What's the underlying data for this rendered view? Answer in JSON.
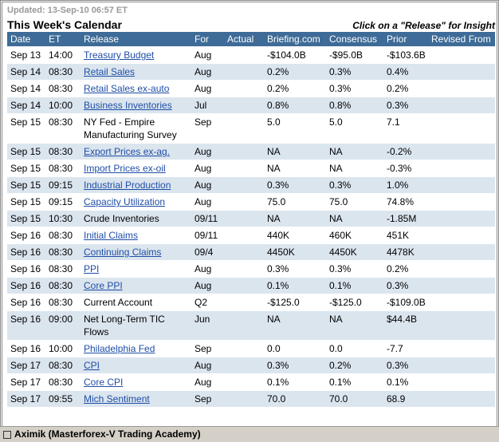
{
  "updated": "Updated: 13-Sep-10 06:57 ET",
  "title": "This Week's Calendar",
  "hint": "Click on a \"Release\" for Insight",
  "headers": [
    "Date",
    "ET",
    "Release",
    "For",
    "Actual",
    "Briefing.com",
    "Consensus",
    "Prior",
    "Revised From"
  ],
  "rows": [
    {
      "date": "Sep 13",
      "time": "14:00",
      "release": "Treasury Budget",
      "link": true,
      "for": "Aug",
      "briefing": "-$104.0B",
      "consensus": "-$95.0B",
      "prior": "-$103.6B"
    },
    {
      "date": "Sep 14",
      "time": "08:30",
      "release": "Retail Sales",
      "link": true,
      "for": "Aug",
      "briefing": "0.2%",
      "consensus": "0.3%",
      "prior": "0.4%"
    },
    {
      "date": "Sep 14",
      "time": "08:30",
      "release": "Retail Sales ex-auto",
      "link": true,
      "for": "Aug",
      "briefing": "0.2%",
      "consensus": "0.3%",
      "prior": "0.2%"
    },
    {
      "date": "Sep 14",
      "time": "10:00",
      "release": "Business Inventories",
      "link": true,
      "for": "Jul",
      "briefing": "0.8%",
      "consensus": "0.8%",
      "prior": "0.3%"
    },
    {
      "date": "Sep 15",
      "time": "08:30",
      "release": "NY Fed - Empire Manufacturing Survey",
      "link": false,
      "for": "Sep",
      "briefing": "5.0",
      "consensus": "5.0",
      "prior": "7.1"
    },
    {
      "date": "Sep 15",
      "time": "08:30",
      "release": "Export Prices ex-ag.",
      "link": true,
      "for": "Aug",
      "briefing": "NA",
      "consensus": "NA",
      "prior": "-0.2%"
    },
    {
      "date": "Sep 15",
      "time": "08:30",
      "release": "Import Prices ex-oil",
      "link": true,
      "for": "Aug",
      "briefing": "NA",
      "consensus": "NA",
      "prior": "-0.3%"
    },
    {
      "date": "Sep 15",
      "time": "09:15",
      "release": "Industrial Production",
      "link": true,
      "for": "Aug",
      "briefing": "0.3%",
      "consensus": "0.3%",
      "prior": "1.0%"
    },
    {
      "date": "Sep 15",
      "time": "09:15",
      "release": "Capacity Utilization",
      "link": true,
      "for": "Aug",
      "briefing": "75.0",
      "consensus": "75.0",
      "prior": "74.8%"
    },
    {
      "date": "Sep 15",
      "time": "10:30",
      "release": "Crude Inventories",
      "link": false,
      "for": "09/11",
      "briefing": "NA",
      "consensus": "NA",
      "prior": "-1.85M"
    },
    {
      "date": "Sep 16",
      "time": "08:30",
      "release": "Initial Claims",
      "link": true,
      "for": "09/11",
      "briefing": "440K",
      "consensus": "460K",
      "prior": "451K"
    },
    {
      "date": "Sep 16",
      "time": "08:30",
      "release": "Continuing Claims",
      "link": true,
      "for": "09/4",
      "briefing": "4450K",
      "consensus": "4450K",
      "prior": "4478K"
    },
    {
      "date": "Sep 16",
      "time": "08:30",
      "release": "PPI",
      "link": true,
      "for": "Aug",
      "briefing": "0.3%",
      "consensus": "0.3%",
      "prior": "0.2%"
    },
    {
      "date": "Sep 16",
      "time": "08:30",
      "release": "Core PPI",
      "link": true,
      "for": "Aug",
      "briefing": "0.1%",
      "consensus": "0.1%",
      "prior": "0.3%"
    },
    {
      "date": "Sep 16",
      "time": "08:30",
      "release": "Current Account",
      "link": false,
      "for": "Q2",
      "briefing": "-$125.0",
      "consensus": "-$125.0",
      "prior": "-$109.0B"
    },
    {
      "date": "Sep 16",
      "time": "09:00",
      "release": "Net Long-Term TIC Flows",
      "link": false,
      "for": "Jun",
      "briefing": "NA",
      "consensus": "NA",
      "prior": "$44.4B"
    },
    {
      "date": "Sep 16",
      "time": "10:00",
      "release": "Philadelphia Fed",
      "link": true,
      "for": "Sep",
      "briefing": "0.0",
      "consensus": "0.0",
      "prior": "-7.7"
    },
    {
      "date": "Sep 17",
      "time": "08:30",
      "release": "CPI",
      "link": true,
      "for": "Aug",
      "briefing": "0.3%",
      "consensus": "0.2%",
      "prior": "0.3%"
    },
    {
      "date": "Sep 17",
      "time": "08:30",
      "release": "Core CPI",
      "link": true,
      "for": "Aug",
      "briefing": "0.1%",
      "consensus": "0.1%",
      "prior": "0.1%"
    },
    {
      "date": "Sep 17",
      "time": "09:55",
      "release": "Mich Sentiment",
      "link": true,
      "for": "Sep",
      "briefing": "70.0",
      "consensus": "70.0",
      "prior": "68.9"
    }
  ],
  "footer": "Aximik (Masterforex-V Trading Academy)"
}
